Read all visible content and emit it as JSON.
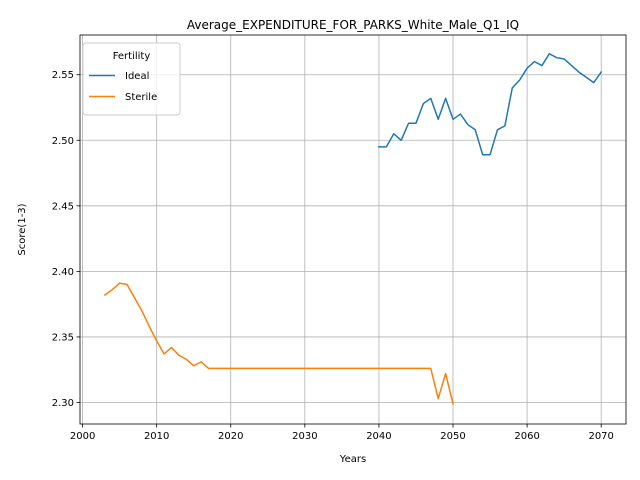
{
  "chart_data": {
    "type": "line",
    "title": "Average_EXPENDITURE_FOR_PARKS_White_Male_Q1_IQ",
    "xlabel": "Years",
    "ylabel": "Score(1-3)",
    "xlim": [
      1999.65,
      2073.35
    ],
    "ylim": [
      2.2836,
      2.5803
    ],
    "xticks": [
      2000,
      2010,
      2020,
      2030,
      2040,
      2050,
      2060,
      2070
    ],
    "xtick_labels": [
      "2000",
      "2010",
      "2020",
      "2030",
      "2040",
      "2050",
      "2060",
      "2070"
    ],
    "yticks": [
      2.3,
      2.35,
      2.4,
      2.45,
      2.5,
      2.55
    ],
    "ytick_labels": [
      "2.30",
      "2.35",
      "2.40",
      "2.45",
      "2.50",
      "2.55"
    ],
    "grid": true,
    "legend": {
      "title": "Fertility",
      "placement": "upper left"
    },
    "series": [
      {
        "name": "Ideal",
        "color": "#1f77b4",
        "x": [
          2040,
          2041,
          2042,
          2043,
          2044,
          2045,
          2046,
          2047,
          2048,
          2049,
          2050,
          2051,
          2052,
          2053,
          2054,
          2055,
          2056,
          2057,
          2058,
          2059,
          2060,
          2061,
          2062,
          2063,
          2064,
          2065,
          2066,
          2067,
          2068,
          2069,
          2070
        ],
        "y": [
          2.495,
          2.495,
          2.505,
          2.5,
          2.513,
          2.513,
          2.528,
          2.532,
          2.516,
          2.532,
          2.516,
          2.52,
          2.512,
          2.508,
          2.489,
          2.489,
          2.508,
          2.511,
          2.54,
          2.546,
          2.555,
          2.56,
          2.557,
          2.566,
          2.563,
          2.562,
          2.557,
          2.552,
          2.548,
          2.544,
          2.552
        ]
      },
      {
        "name": "Sterile",
        "color": "#ff7f0e",
        "x": [
          2003,
          2004,
          2005,
          2006,
          2007,
          2008,
          2009,
          2010,
          2011,
          2012,
          2013,
          2014,
          2015,
          2016,
          2017,
          2018,
          2020,
          2025,
          2030,
          2035,
          2040,
          2045,
          2046,
          2047,
          2048,
          2049,
          2050
        ],
        "y": [
          2.382,
          2.386,
          2.391,
          2.39,
          2.38,
          2.37,
          2.358,
          2.347,
          2.337,
          2.342,
          2.336,
          2.333,
          2.328,
          2.331,
          2.326,
          2.326,
          2.326,
          2.326,
          2.326,
          2.326,
          2.326,
          2.326,
          2.326,
          2.326,
          2.303,
          2.322,
          2.299
        ]
      }
    ]
  }
}
